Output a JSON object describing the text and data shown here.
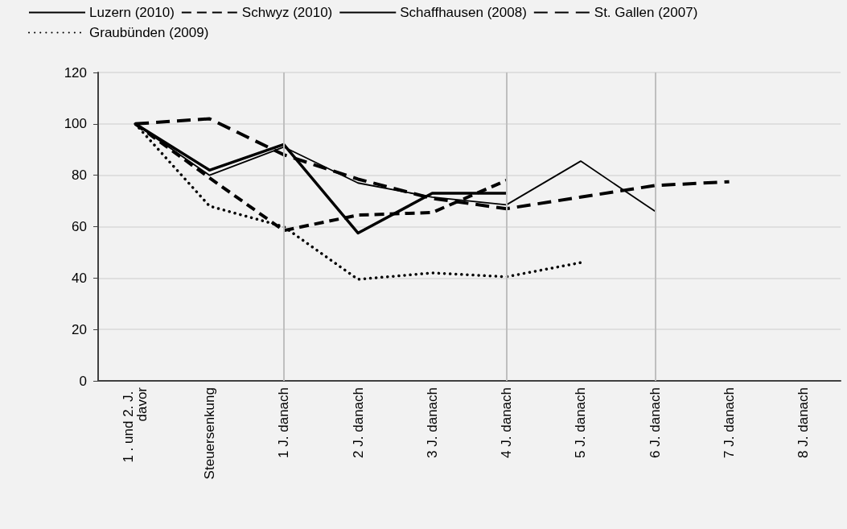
{
  "chart_data": {
    "type": "line",
    "categories": [
      "1 . und 2. J. davor",
      "Steuersenkung",
      "1 J. danach",
      "2 J. danach",
      "3 J. danach",
      "4 J. danach",
      "5 J. danach",
      "6 J. danach",
      "7 J. danach",
      "8 J. danach"
    ],
    "series": [
      {
        "name": "Luzern (2010)",
        "color": "#000000",
        "line_style": "solid",
        "values": [
          100,
          82,
          92,
          57.5,
          73,
          73,
          null,
          null,
          null,
          null
        ]
      },
      {
        "name": "Schwyz (2010)",
        "color": "#000000",
        "line_style": "dashed",
        "values": [
          100,
          79,
          58.5,
          64.5,
          65.5,
          78,
          null,
          null,
          null,
          null
        ]
      },
      {
        "name": "Schaffhausen (2008)",
        "color": "#000000",
        "line_style": "solid",
        "values": [
          100,
          80,
          91,
          77,
          71.5,
          68.5,
          85.5,
          66,
          null,
          null
        ]
      },
      {
        "name": "St. Gallen (2007)",
        "color": "#000000",
        "line_style": "dashed",
        "values": [
          100,
          102,
          88,
          78.5,
          71,
          67,
          71.5,
          76,
          77.5,
          null
        ]
      },
      {
        "name": "Graubünden (2009)",
        "color": "#000000",
        "line_style": "dotted",
        "values": [
          100,
          68,
          60,
          39.5,
          42,
          40.5,
          46,
          null,
          null,
          null
        ]
      }
    ],
    "ylim": [
      0,
      120
    ],
    "yticks": [
      0,
      20,
      40,
      60,
      80,
      100,
      120
    ],
    "grid": true,
    "legend": "top",
    "marker": "none"
  }
}
